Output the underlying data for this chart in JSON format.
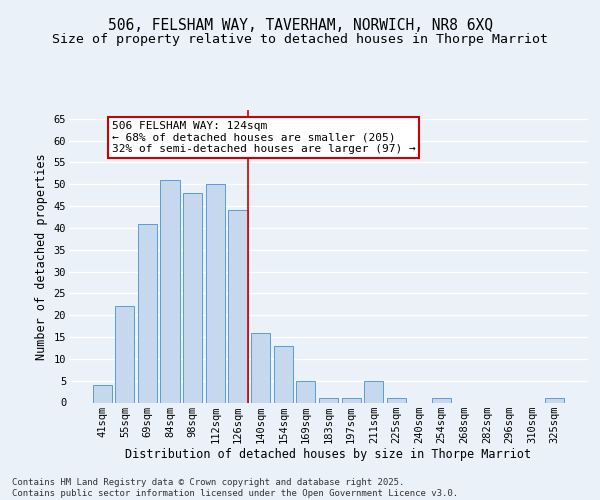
{
  "title1": "506, FELSHAM WAY, TAVERHAM, NORWICH, NR8 6XQ",
  "title2": "Size of property relative to detached houses in Thorpe Marriot",
  "xlabel": "Distribution of detached houses by size in Thorpe Marriot",
  "ylabel": "Number of detached properties",
  "categories": [
    "41sqm",
    "55sqm",
    "69sqm",
    "84sqm",
    "98sqm",
    "112sqm",
    "126sqm",
    "140sqm",
    "154sqm",
    "169sqm",
    "183sqm",
    "197sqm",
    "211sqm",
    "225sqm",
    "240sqm",
    "254sqm",
    "268sqm",
    "282sqm",
    "296sqm",
    "310sqm",
    "325sqm"
  ],
  "values": [
    4,
    22,
    41,
    51,
    48,
    50,
    44,
    16,
    13,
    5,
    1,
    1,
    5,
    1,
    0,
    1,
    0,
    0,
    0,
    0,
    1
  ],
  "bar_color": "#c5d8ed",
  "bar_edge_color": "#5b9bd5",
  "background_color": "#eaf1f8",
  "grid_color": "#ffffff",
  "annotation_box_text": "506 FELSHAM WAY: 124sqm\n← 68% of detached houses are smaller (205)\n32% of semi-detached houses are larger (97) →",
  "annotation_box_color": "#ffffff",
  "annotation_box_edge_color": "#cc0000",
  "vline_x_index": 6,
  "vline_color": "#cc0000",
  "ylim": [
    0,
    67
  ],
  "yticks": [
    0,
    5,
    10,
    15,
    20,
    25,
    30,
    35,
    40,
    45,
    50,
    55,
    60,
    65
  ],
  "footer_text": "Contains HM Land Registry data © Crown copyright and database right 2025.\nContains public sector information licensed under the Open Government Licence v3.0.",
  "title1_fontsize": 10.5,
  "title2_fontsize": 9.5,
  "axis_label_fontsize": 8.5,
  "tick_fontsize": 7.5,
  "footer_fontsize": 6.5,
  "annotation_fontsize": 8
}
